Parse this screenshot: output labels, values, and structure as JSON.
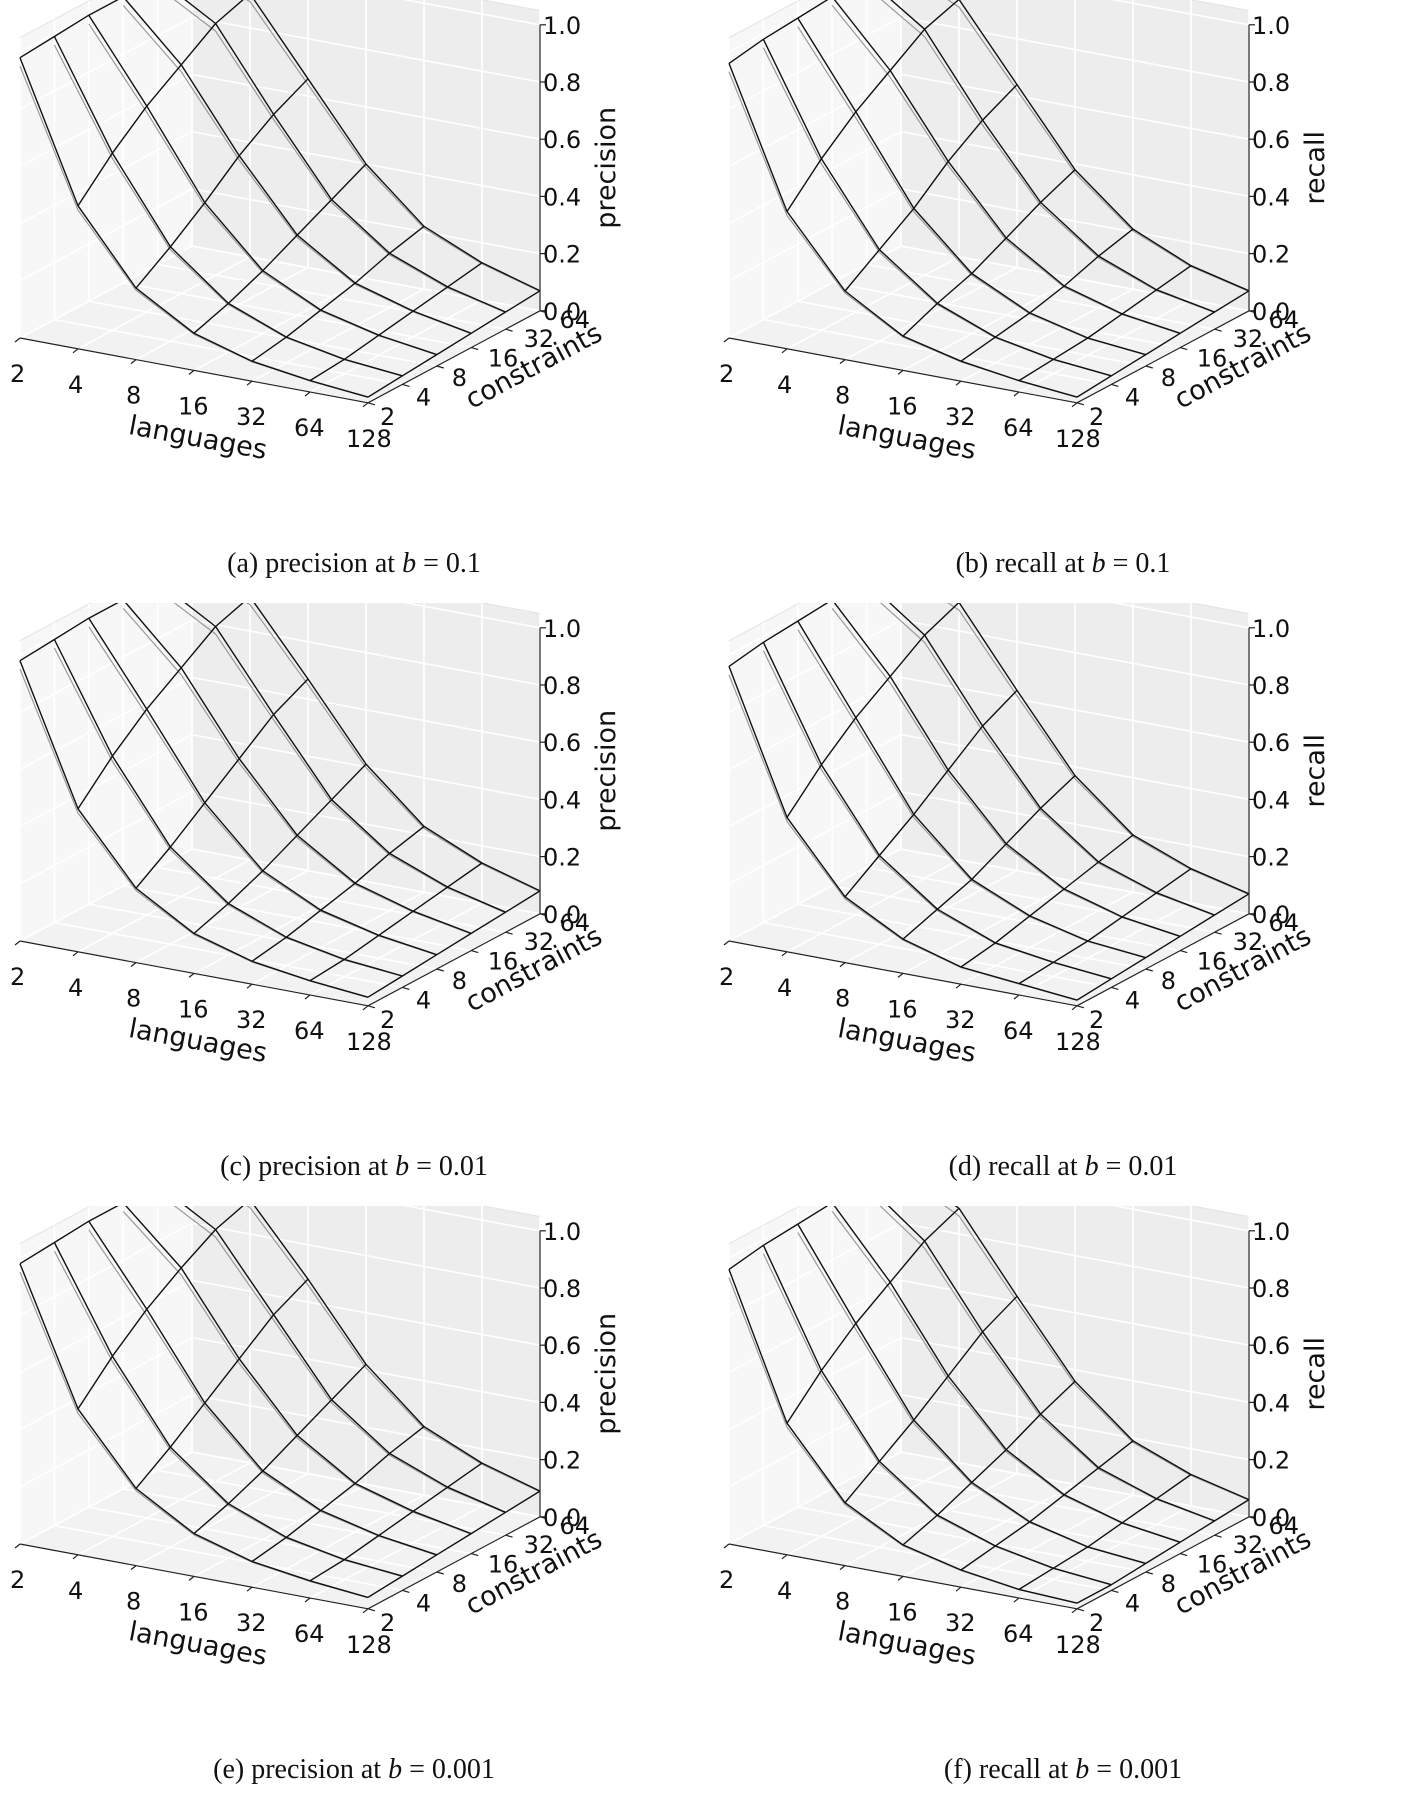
{
  "chart_data": [
    {
      "id": "a",
      "type": "surface3d-wireframe",
      "title": "(a) precision at b = 0.1",
      "caption": {
        "prefix": "(a) precision at ",
        "var": "b",
        "suffix": " = 0.1"
      },
      "xlabel": "languages",
      "ylabel": "constraints",
      "zlabel": "precision",
      "x_ticks": [
        "2",
        "4",
        "8",
        "16",
        "32",
        "64",
        "128"
      ],
      "y_ticks": [
        "2",
        "4",
        "8",
        "16",
        "32",
        "64"
      ],
      "z_ticks": [
        "0.0",
        "0.2",
        "0.4",
        "0.6",
        "0.8",
        "1.0"
      ],
      "zlim": [
        0,
        1
      ],
      "x": [
        2,
        4,
        8,
        16,
        32,
        64,
        128
      ],
      "y": [
        2,
        4,
        8,
        16,
        32,
        64
      ],
      "z_by_constraints": [
        [
          0.98,
          0.5,
          0.25,
          0.13,
          0.07,
          0.04,
          0.02
        ],
        [
          0.99,
          0.62,
          0.33,
          0.17,
          0.09,
          0.05,
          0.03
        ],
        [
          1.0,
          0.72,
          0.42,
          0.22,
          0.12,
          0.07,
          0.04
        ],
        [
          1.0,
          0.8,
          0.52,
          0.28,
          0.15,
          0.09,
          0.05
        ],
        [
          1.0,
          0.88,
          0.6,
          0.34,
          0.19,
          0.11,
          0.06
        ],
        [
          1.0,
          0.92,
          0.66,
          0.4,
          0.22,
          0.13,
          0.07
        ]
      ]
    },
    {
      "id": "b",
      "type": "surface3d-wireframe",
      "title": "(b) recall at b = 0.1",
      "caption": {
        "prefix": "(b) recall at ",
        "var": "b",
        "suffix": " = 0.1"
      },
      "xlabel": "languages",
      "ylabel": "constraints",
      "zlabel": "recall",
      "x_ticks": [
        "2",
        "4",
        "8",
        "16",
        "32",
        "64",
        "128"
      ],
      "y_ticks": [
        "2",
        "4",
        "8",
        "16",
        "32",
        "64"
      ],
      "z_ticks": [
        "0.0",
        "0.2",
        "0.4",
        "0.6",
        "0.8",
        "1.0"
      ],
      "zlim": [
        0,
        1
      ],
      "x": [
        2,
        4,
        8,
        16,
        32,
        64,
        128
      ],
      "y": [
        2,
        4,
        8,
        16,
        32,
        64
      ],
      "z_by_constraints": [
        [
          0.96,
          0.48,
          0.24,
          0.12,
          0.07,
          0.04,
          0.02
        ],
        [
          0.98,
          0.6,
          0.32,
          0.17,
          0.09,
          0.05,
          0.03
        ],
        [
          0.99,
          0.7,
          0.4,
          0.21,
          0.11,
          0.06,
          0.04
        ],
        [
          1.0,
          0.78,
          0.5,
          0.27,
          0.14,
          0.08,
          0.05
        ],
        [
          1.0,
          0.86,
          0.58,
          0.33,
          0.18,
          0.1,
          0.06
        ],
        [
          1.0,
          0.9,
          0.64,
          0.38,
          0.21,
          0.12,
          0.07
        ]
      ]
    },
    {
      "id": "c",
      "type": "surface3d-wireframe",
      "title": "(c) precision at b = 0.01",
      "caption": {
        "prefix": "(c) precision at ",
        "var": "b",
        "suffix": " = 0.01"
      },
      "xlabel": "languages",
      "ylabel": "constraints",
      "zlabel": "precision",
      "x_ticks": [
        "2",
        "4",
        "8",
        "16",
        "32",
        "64",
        "128"
      ],
      "y_ticks": [
        "2",
        "4",
        "8",
        "16",
        "32",
        "64"
      ],
      "z_ticks": [
        "0.0",
        "0.2",
        "0.4",
        "0.6",
        "0.8",
        "1.0"
      ],
      "zlim": [
        0,
        1
      ],
      "x": [
        2,
        4,
        8,
        16,
        32,
        64,
        128
      ],
      "y": [
        2,
        4,
        8,
        16,
        32,
        64
      ],
      "z_by_constraints": [
        [
          0.98,
          0.5,
          0.26,
          0.14,
          0.08,
          0.05,
          0.03
        ],
        [
          0.99,
          0.62,
          0.34,
          0.18,
          0.1,
          0.06,
          0.04
        ],
        [
          1.0,
          0.72,
          0.43,
          0.23,
          0.13,
          0.08,
          0.05
        ],
        [
          1.0,
          0.8,
          0.52,
          0.29,
          0.16,
          0.1,
          0.06
        ],
        [
          1.0,
          0.88,
          0.61,
          0.35,
          0.2,
          0.12,
          0.07
        ],
        [
          1.0,
          0.92,
          0.67,
          0.41,
          0.23,
          0.14,
          0.08
        ]
      ]
    },
    {
      "id": "d",
      "type": "surface3d-wireframe",
      "title": "(d) recall at b = 0.01",
      "caption": {
        "prefix": "(d) recall at ",
        "var": "b",
        "suffix": " = 0.01"
      },
      "xlabel": "languages",
      "ylabel": "constraints",
      "zlabel": "recall",
      "x_ticks": [
        "2",
        "4",
        "8",
        "16",
        "32",
        "64",
        "128"
      ],
      "y_ticks": [
        "2",
        "4",
        "8",
        "16",
        "32",
        "64"
      ],
      "z_ticks": [
        "0.0",
        "0.2",
        "0.4",
        "0.6",
        "0.8",
        "1.0"
      ],
      "zlim": [
        0,
        1
      ],
      "x": [
        2,
        4,
        8,
        16,
        32,
        64,
        128
      ],
      "y": [
        2,
        4,
        8,
        16,
        32,
        64
      ],
      "z_by_constraints": [
        [
          0.96,
          0.47,
          0.23,
          0.12,
          0.06,
          0.04,
          0.02
        ],
        [
          0.98,
          0.59,
          0.31,
          0.16,
          0.08,
          0.05,
          0.03
        ],
        [
          0.99,
          0.69,
          0.39,
          0.2,
          0.11,
          0.06,
          0.04
        ],
        [
          1.0,
          0.77,
          0.48,
          0.26,
          0.14,
          0.08,
          0.05
        ],
        [
          1.0,
          0.85,
          0.57,
          0.32,
          0.17,
          0.1,
          0.06
        ],
        [
          1.0,
          0.9,
          0.63,
          0.37,
          0.2,
          0.12,
          0.07
        ]
      ]
    },
    {
      "id": "e",
      "type": "surface3d-wireframe",
      "title": "(e) precision at b = 0.001",
      "caption": {
        "prefix": "(e) precision at ",
        "var": "b",
        "suffix": " = 0.001"
      },
      "xlabel": "languages",
      "ylabel": "constraints",
      "zlabel": "precision",
      "x_ticks": [
        "2",
        "4",
        "8",
        "16",
        "32",
        "64",
        "128"
      ],
      "y_ticks": [
        "2",
        "4",
        "8",
        "16",
        "32",
        "64"
      ],
      "z_ticks": [
        "0.0",
        "0.2",
        "0.4",
        "0.6",
        "0.8",
        "1.0"
      ],
      "zlim": [
        0,
        1
      ],
      "x": [
        2,
        4,
        8,
        16,
        32,
        64,
        128
      ],
      "y": [
        2,
        4,
        8,
        16,
        32,
        64
      ],
      "z_by_constraints": [
        [
          0.98,
          0.51,
          0.27,
          0.15,
          0.09,
          0.06,
          0.04
        ],
        [
          0.99,
          0.63,
          0.35,
          0.19,
          0.11,
          0.07,
          0.05
        ],
        [
          1.0,
          0.73,
          0.44,
          0.24,
          0.14,
          0.09,
          0.06
        ],
        [
          1.0,
          0.81,
          0.53,
          0.3,
          0.17,
          0.11,
          0.07
        ],
        [
          1.0,
          0.88,
          0.62,
          0.36,
          0.21,
          0.13,
          0.08
        ],
        [
          1.0,
          0.92,
          0.68,
          0.42,
          0.24,
          0.15,
          0.09
        ]
      ]
    },
    {
      "id": "f",
      "type": "surface3d-wireframe",
      "title": "(f) recall at b = 0.001",
      "caption": {
        "prefix": "(f) recall at ",
        "var": "b",
        "suffix": " = 0.001"
      },
      "xlabel": "languages",
      "ylabel": "constraints",
      "zlabel": "recall",
      "x_ticks": [
        "2",
        "4",
        "8",
        "16",
        "32",
        "64",
        "128"
      ],
      "y_ticks": [
        "2",
        "4",
        "8",
        "16",
        "32",
        "64"
      ],
      "z_ticks": [
        "0.0",
        "0.2",
        "0.4",
        "0.6",
        "0.8",
        "1.0"
      ],
      "zlim": [
        0,
        1
      ],
      "x": [
        2,
        4,
        8,
        16,
        32,
        64,
        128
      ],
      "y": [
        2,
        4,
        8,
        16,
        32,
        64
      ],
      "z_by_constraints": [
        [
          0.96,
          0.46,
          0.22,
          0.11,
          0.06,
          0.03,
          0.02
        ],
        [
          0.98,
          0.58,
          0.3,
          0.15,
          0.08,
          0.04,
          0.02
        ],
        [
          0.99,
          0.68,
          0.38,
          0.2,
          0.1,
          0.05,
          0.03
        ],
        [
          1.0,
          0.76,
          0.47,
          0.25,
          0.13,
          0.07,
          0.04
        ],
        [
          1.0,
          0.84,
          0.56,
          0.31,
          0.16,
          0.09,
          0.05
        ],
        [
          1.0,
          0.89,
          0.62,
          0.36,
          0.19,
          0.11,
          0.06
        ]
      ]
    }
  ],
  "colors": {
    "pane_left": "#f7f7f7",
    "pane_back": "#ededed",
    "pane_floor": "#f2f2f2",
    "grid": "#ffffff",
    "wire_front": "#111111",
    "wire_back": "#9a9a9a",
    "text": "#111111"
  }
}
